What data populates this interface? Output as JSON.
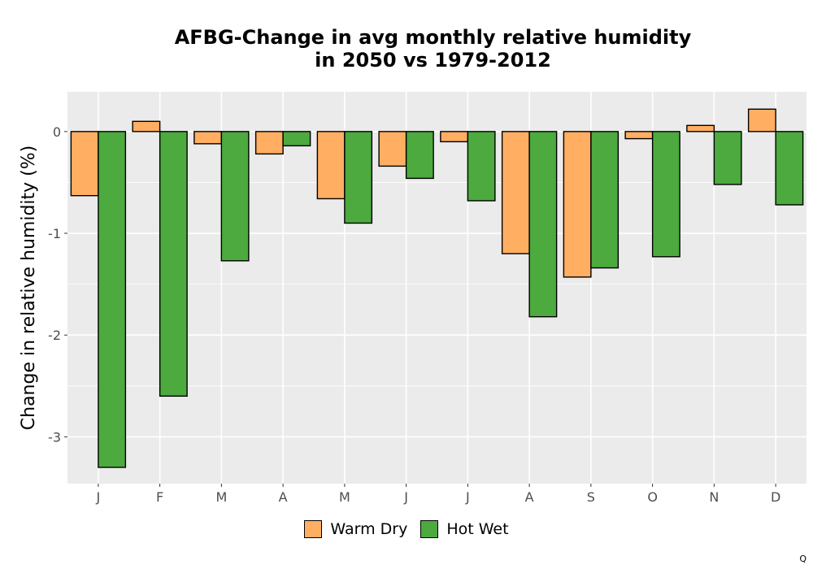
{
  "title_line1": "AFBG-Change in avg monthly relative humidity",
  "title_line2": "in 2050 vs 1979-2012",
  "corner_mark": "Q",
  "colors": {
    "panel": "#ebebeb",
    "grid": "#ffffff",
    "warm_dry": "#ffae62",
    "hot_wet": "#4caa3e"
  },
  "chart_data": {
    "type": "bar",
    "title": "AFBG-Change in avg monthly relative humidity in 2050 vs 1979-2012",
    "xlabel": "",
    "ylabel": "Change in relative humidity (%)",
    "categories": [
      "J",
      "F",
      "M",
      "A",
      "M",
      "J",
      "J",
      "A",
      "S",
      "O",
      "N",
      "D"
    ],
    "series": [
      {
        "name": "Warm Dry",
        "color": "#ffae62",
        "values": [
          -0.63,
          0.1,
          -0.12,
          -0.22,
          -0.66,
          -0.34,
          -0.1,
          -1.2,
          -1.43,
          -0.07,
          0.06,
          0.22
        ]
      },
      {
        "name": "Hot Wet",
        "color": "#4caa3e",
        "values": [
          -3.3,
          -2.6,
          -1.27,
          -0.14,
          -0.9,
          -0.46,
          -0.68,
          -1.82,
          -1.34,
          -1.23,
          -0.52,
          -0.72
        ]
      }
    ],
    "ylim": [
      -3.46,
      0.39
    ],
    "yticks": [
      0,
      -1,
      -2,
      -3
    ],
    "ytick_labels": [
      "0",
      "-1",
      "-2",
      "-3"
    ],
    "grid": true,
    "legend_position": "bottom"
  }
}
